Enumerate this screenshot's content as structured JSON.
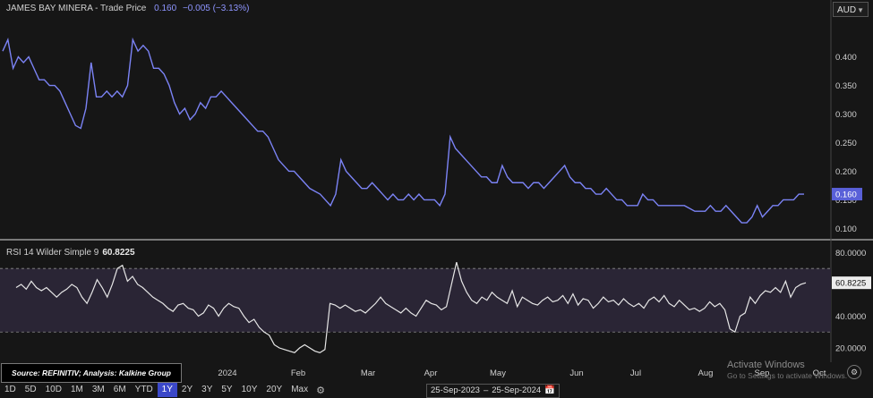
{
  "header": {
    "title": "JAMES BAY MINERA",
    "subtitle": "- Trade Price",
    "price": "0.160",
    "change": "−0.005 (−3.13%)"
  },
  "currency": "AUD",
  "rsi": {
    "label": "RSI 14 Wilder Simple 9",
    "value": "60.8225"
  },
  "source_note": "Source: REFINITIV; Analysis: Kalkine Group",
  "ranges": [
    "1D",
    "5D",
    "10D",
    "1M",
    "3M",
    "6M",
    "YTD",
    "1Y",
    "2Y",
    "3Y",
    "5Y",
    "10Y",
    "20Y",
    "Max"
  ],
  "active_range": "1Y",
  "date_range": {
    "start": "25-Sep-2023",
    "sep": "–",
    "end": "25-Sep-2024"
  },
  "watermark": {
    "line1": "Activate Windows",
    "line2": "Go to Settings to activate Windows."
  },
  "colors": {
    "price_line": "#7b83f5",
    "rsi_line": "#e6e6e6",
    "rsi_band": "#2a2535",
    "active": "#3b48c9"
  },
  "chart_data": [
    {
      "type": "line",
      "series": [
        {
          "name": "Trade Price",
          "values": [
            0.41,
            0.43,
            0.38,
            0.4,
            0.39,
            0.4,
            0.38,
            0.36,
            0.36,
            0.35,
            0.35,
            0.34,
            0.32,
            0.3,
            0.28,
            0.275,
            0.31,
            0.39,
            0.33,
            0.33,
            0.34,
            0.33,
            0.34,
            0.33,
            0.35,
            0.43,
            0.41,
            0.42,
            0.41,
            0.38,
            0.38,
            0.37,
            0.35,
            0.32,
            0.3,
            0.31,
            0.29,
            0.3,
            0.32,
            0.31,
            0.33,
            0.33,
            0.34,
            0.33,
            0.32,
            0.31,
            0.3,
            0.29,
            0.28,
            0.27,
            0.27,
            0.26,
            0.24,
            0.22,
            0.21,
            0.2,
            0.2,
            0.19,
            0.18,
            0.17,
            0.165,
            0.16,
            0.15,
            0.14,
            0.16,
            0.22,
            0.2,
            0.19,
            0.18,
            0.17,
            0.17,
            0.18,
            0.17,
            0.16,
            0.15,
            0.16,
            0.15,
            0.15,
            0.16,
            0.15,
            0.16,
            0.15,
            0.15,
            0.15,
            0.14,
            0.16,
            0.26,
            0.24,
            0.23,
            0.22,
            0.21,
            0.2,
            0.19,
            0.19,
            0.18,
            0.18,
            0.21,
            0.19,
            0.18,
            0.18,
            0.18,
            0.17,
            0.18,
            0.18,
            0.17,
            0.18,
            0.19,
            0.2,
            0.21,
            0.19,
            0.18,
            0.18,
            0.17,
            0.17,
            0.16,
            0.16,
            0.17,
            0.16,
            0.15,
            0.15,
            0.14,
            0.14,
            0.14,
            0.16,
            0.15,
            0.15,
            0.14,
            0.14,
            0.14,
            0.14,
            0.14,
            0.14,
            0.135,
            0.13,
            0.13,
            0.13,
            0.14,
            0.13,
            0.13,
            0.14,
            0.13,
            0.12,
            0.11,
            0.11,
            0.12,
            0.14,
            0.12,
            0.13,
            0.14,
            0.14,
            0.15,
            0.15,
            0.15,
            0.16,
            0.16
          ]
        }
      ],
      "yticks": [
        0.1,
        0.15,
        0.2,
        0.25,
        0.3,
        0.35,
        0.4
      ],
      "ylim": [
        0.085,
        0.465
      ],
      "last_value_label": "0.160"
    },
    {
      "type": "line",
      "series": [
        {
          "name": "RSI 14 Wilder Simple 9",
          "values": [
            58,
            60,
            57,
            62,
            58,
            56,
            58,
            55,
            52,
            55,
            57,
            60,
            58,
            52,
            48,
            55,
            63,
            58,
            52,
            60,
            70,
            72,
            62,
            65,
            60,
            58,
            55,
            52,
            50,
            48,
            45,
            43,
            47,
            48,
            45,
            44,
            40,
            42,
            47,
            45,
            40,
            45,
            48,
            46,
            45,
            40,
            36,
            38,
            33,
            30,
            28,
            22,
            20,
            19,
            18,
            17,
            20,
            22,
            20,
            18,
            17,
            19,
            48,
            47,
            45,
            47,
            45,
            43,
            44,
            42,
            45,
            48,
            52,
            48,
            46,
            44,
            42,
            45,
            42,
            40,
            45,
            50,
            48,
            47,
            44,
            46,
            60,
            74,
            62,
            55,
            50,
            48,
            52,
            50,
            55,
            52,
            50,
            48,
            56,
            46,
            52,
            50,
            48,
            47,
            50,
            52,
            49,
            50,
            53,
            48,
            54,
            47,
            51,
            50,
            45,
            48,
            52,
            49,
            50,
            47,
            51,
            48,
            46,
            48,
            45,
            50,
            52,
            49,
            53,
            48,
            46,
            50,
            47,
            44,
            45,
            43,
            45,
            49,
            46,
            48,
            44,
            32,
            30,
            40,
            42,
            52,
            48,
            53,
            56,
            55,
            58,
            55,
            62,
            52,
            58,
            60,
            61
          ]
        }
      ],
      "yticks": [
        20,
        40,
        60,
        80
      ],
      "ylim": [
        11,
        87
      ],
      "band": [
        30,
        70
      ],
      "last_value_label": "60.8225"
    }
  ],
  "x_axis_labels": [
    "2024",
    "Feb",
    "Mar",
    "Apr",
    "May",
    "Jun",
    "Jul",
    "Aug",
    "Sep",
    "Oct"
  ]
}
